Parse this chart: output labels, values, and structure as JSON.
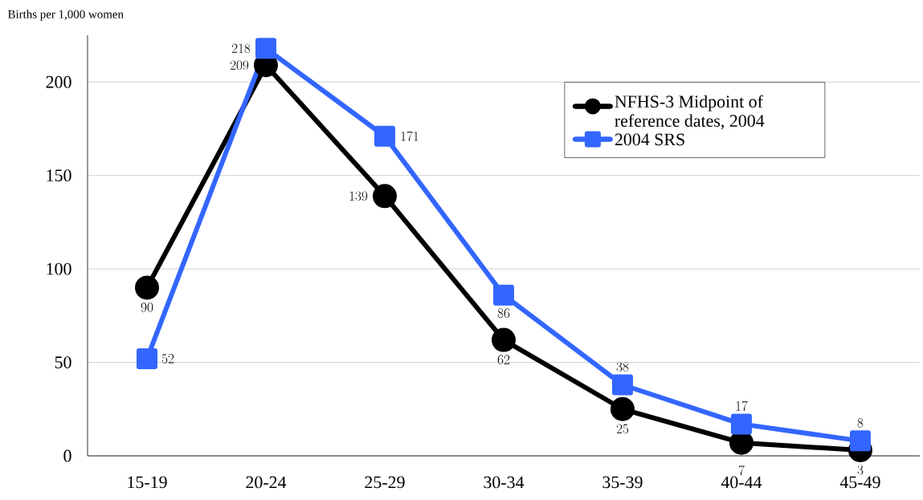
{
  "chart_data": {
    "type": "line",
    "ylabel": "Births per 1,000 women",
    "categories": [
      "15-19",
      "20-24",
      "25-29",
      "30-34",
      "35-39",
      "40-44",
      "45-49"
    ],
    "series": [
      {
        "name": "NFHS-3 Midpoint of reference dates, 2004",
        "color": "#000000",
        "marker": "circle",
        "values": [
          90,
          209,
          139,
          62,
          25,
          7,
          3
        ]
      },
      {
        "name": "2004 SRS",
        "color": "#3366ff",
        "marker": "square",
        "values": [
          52,
          218,
          171,
          86,
          38,
          17,
          8
        ]
      }
    ],
    "ylim": [
      0,
      225
    ],
    "yticks": [
      0,
      50,
      100,
      150,
      200
    ],
    "grid": "y",
    "legend": "top right",
    "data_labels": true,
    "line_style": "solid"
  }
}
